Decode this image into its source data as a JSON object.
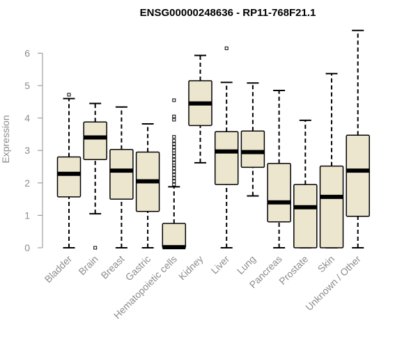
{
  "chart_data": {
    "type": "box",
    "title": "ENSG00000248636 - RP11-768F21.1",
    "xlabel": "",
    "ylabel": "Expression",
    "ylim": [
      0,
      6.8
    ],
    "yticks": [
      0,
      1,
      2,
      3,
      4,
      5,
      6
    ],
    "grid": false,
    "colors": {
      "box_fill": "#ede6cf",
      "stroke": "#000000",
      "axis_text": "#8c8c8c"
    },
    "categories": [
      "Bladder",
      "Brain",
      "Breast",
      "Gastric",
      "Hematopoietic cells",
      "Kidney",
      "Liver",
      "Lung",
      "Pancreas",
      "Prostate",
      "Skin",
      "Unknown / Other"
    ],
    "boxes": [
      {
        "category": "Bladder",
        "whisker_low": 0.0,
        "q1": 1.57,
        "median": 2.28,
        "q3": 2.8,
        "whisker_high": 4.6,
        "outliers": [
          4.72
        ]
      },
      {
        "category": "Brain",
        "whisker_low": 1.05,
        "q1": 2.72,
        "median": 3.4,
        "q3": 3.88,
        "whisker_high": 4.45,
        "outliers": [
          0.0
        ]
      },
      {
        "category": "Breast",
        "whisker_low": 0.0,
        "q1": 1.5,
        "median": 2.38,
        "q3": 3.03,
        "whisker_high": 4.34,
        "outliers": []
      },
      {
        "category": "Gastric",
        "whisker_low": 0.0,
        "q1": 1.12,
        "median": 2.05,
        "q3": 2.95,
        "whisker_high": 3.82,
        "outliers": []
      },
      {
        "category": "Hematopoietic cells",
        "whisker_low": 0.0,
        "q1": 0.0,
        "median": 0.02,
        "q3": 0.75,
        "whisker_high": 1.88,
        "outliers": [
          1.95,
          2.05,
          2.15,
          2.25,
          2.35,
          2.45,
          2.55,
          2.62,
          2.72,
          2.82,
          2.92,
          3.0,
          3.1,
          3.2,
          3.3,
          3.42,
          3.95,
          4.05,
          4.55
        ]
      },
      {
        "category": "Kidney",
        "whisker_low": 2.62,
        "q1": 3.77,
        "median": 4.45,
        "q3": 5.15,
        "whisker_high": 5.93,
        "outliers": []
      },
      {
        "category": "Liver",
        "whisker_low": 0.0,
        "q1": 1.95,
        "median": 2.97,
        "q3": 3.58,
        "whisker_high": 5.1,
        "outliers": [
          6.15
        ]
      },
      {
        "category": "Lung",
        "whisker_low": 1.6,
        "q1": 2.48,
        "median": 2.95,
        "q3": 3.6,
        "whisker_high": 5.08,
        "outliers": []
      },
      {
        "category": "Pancreas",
        "whisker_low": 0.0,
        "q1": 0.8,
        "median": 1.4,
        "q3": 2.6,
        "whisker_high": 4.85,
        "outliers": []
      },
      {
        "category": "Prostate",
        "whisker_low": 0.0,
        "q1": 0.0,
        "median": 1.25,
        "q3": 1.95,
        "whisker_high": 3.93,
        "outliers": []
      },
      {
        "category": "Skin",
        "whisker_low": 0.0,
        "q1": 0.0,
        "median": 1.57,
        "q3": 2.52,
        "whisker_high": 5.37,
        "outliers": []
      },
      {
        "category": "Unknown / Other",
        "whisker_low": 0.0,
        "q1": 0.97,
        "median": 2.38,
        "q3": 3.47,
        "whisker_high": 6.7,
        "outliers": []
      }
    ]
  }
}
